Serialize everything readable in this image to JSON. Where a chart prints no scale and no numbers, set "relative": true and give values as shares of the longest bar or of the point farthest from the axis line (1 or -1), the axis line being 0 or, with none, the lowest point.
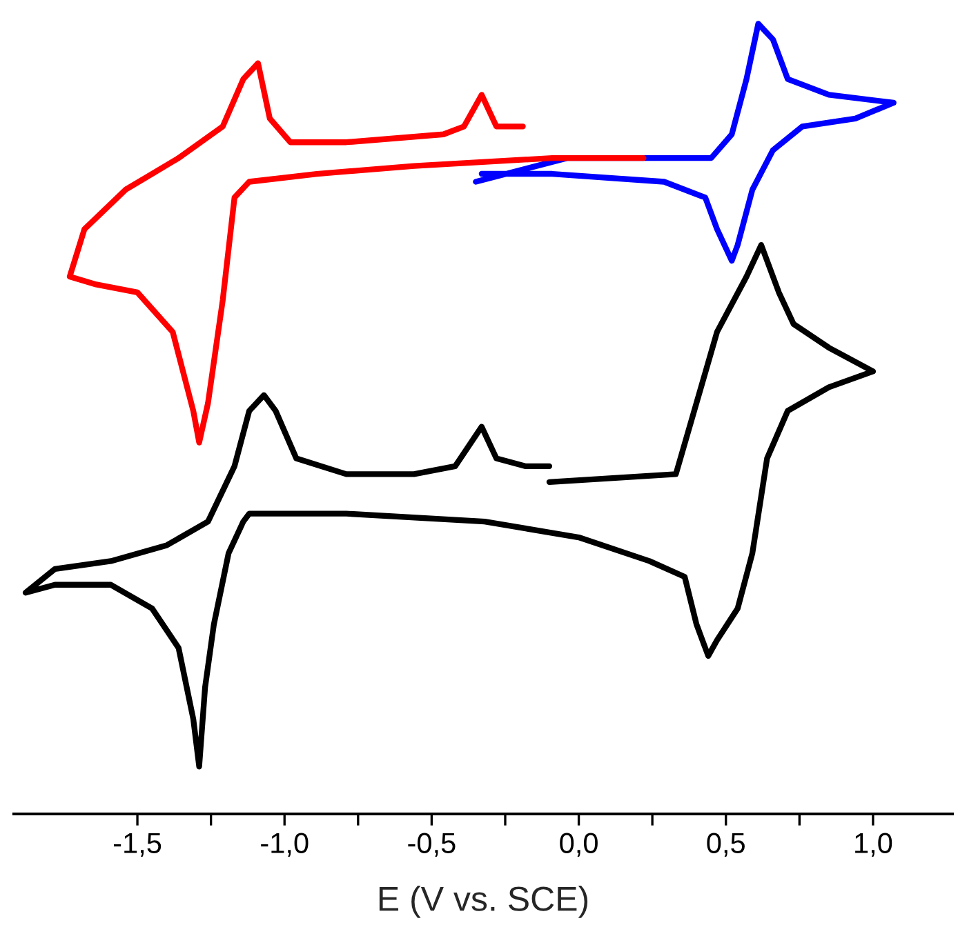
{
  "chart_data": {
    "type": "line",
    "relative": true,
    "xlabel": "E (V vs. SCE)",
    "xlim": [
      -1.92,
      1.27
    ],
    "xticks": [
      {
        "value": -1.5,
        "label": "-1,5"
      },
      {
        "value": -1.25,
        "label": null
      },
      {
        "value": -1.0,
        "label": "-1,0"
      },
      {
        "value": -0.75,
        "label": null
      },
      {
        "value": -0.5,
        "label": "-0,5"
      },
      {
        "value": -0.25,
        "label": null
      },
      {
        "value": 0.0,
        "label": "0,0"
      },
      {
        "value": 0.25,
        "label": null
      },
      {
        "value": 0.5,
        "label": "0,5"
      },
      {
        "value": 0.75,
        "label": null
      },
      {
        "value": 1.0,
        "label": "1,0"
      }
    ],
    "tick_labels": "x",
    "grid": false,
    "legend": false,
    "marker": "none",
    "line_style": "solid",
    "series": [
      {
        "color": "#000000",
        "x": [
          -0.1,
          0.33,
          0.47,
          0.57,
          0.62,
          0.68,
          0.73,
          0.85,
          1.0,
          0.85,
          0.71,
          0.64,
          0.59,
          0.54,
          0.47,
          0.44,
          0.4,
          0.36,
          0.24,
          0.0,
          -0.32,
          -0.79,
          -1.12,
          -1.14,
          -1.19,
          -1.24,
          -1.27,
          -1.29,
          -1.31,
          -1.36,
          -1.45,
          -1.59,
          -1.78,
          -1.88,
          -1.78,
          -1.59,
          -1.4,
          -1.26,
          -1.17,
          -1.12,
          -1.07,
          -1.03,
          -0.96,
          -0.79,
          -0.56,
          -0.42,
          -0.33,
          -0.28,
          -0.18,
          -0.1
        ],
        "values": [
          0.42,
          0.43,
          0.61,
          0.68,
          0.72,
          0.66,
          0.62,
          0.59,
          0.56,
          0.54,
          0.51,
          0.45,
          0.33,
          0.26,
          0.22,
          0.2,
          0.24,
          0.3,
          0.32,
          0.35,
          0.37,
          0.38,
          0.38,
          0.37,
          0.33,
          0.24,
          0.16,
          0.06,
          0.12,
          0.21,
          0.26,
          0.29,
          0.29,
          0.28,
          0.31,
          0.32,
          0.34,
          0.37,
          0.44,
          0.51,
          0.53,
          0.51,
          0.45,
          0.43,
          0.43,
          0.44,
          0.49,
          0.45,
          0.44,
          0.44
        ]
      },
      {
        "color": "#ff0000",
        "x": [
          -0.19,
          -0.28,
          -0.33,
          -0.39,
          -0.46,
          -0.79,
          -0.98,
          -1.05,
          -1.09,
          -1.14,
          -1.21,
          -1.36,
          -1.54,
          -1.68,
          -1.73,
          -1.64,
          -1.5,
          -1.38,
          -1.31,
          -1.29,
          -1.26,
          -1.21,
          -1.17,
          -1.12,
          -0.89,
          -0.56,
          -0.09,
          0.22
        ],
        "values": [
          0.87,
          0.87,
          0.91,
          0.87,
          0.86,
          0.85,
          0.85,
          0.88,
          0.95,
          0.93,
          0.87,
          0.83,
          0.79,
          0.74,
          0.68,
          0.67,
          0.66,
          0.61,
          0.51,
          0.47,
          0.52,
          0.65,
          0.78,
          0.8,
          0.81,
          0.82,
          0.83,
          0.83
        ]
      },
      {
        "color": "#0000ff",
        "x": [
          -0.35,
          -0.04,
          0.22,
          0.45,
          0.52,
          0.57,
          0.61,
          0.66,
          0.71,
          0.85,
          1.07,
          0.94,
          0.76,
          0.66,
          0.59,
          0.54,
          0.52,
          0.47,
          0.43,
          0.29,
          -0.09,
          -0.33
        ],
        "values": [
          0.8,
          0.83,
          0.83,
          0.83,
          0.86,
          0.93,
          1.0,
          0.98,
          0.93,
          0.91,
          0.9,
          0.88,
          0.87,
          0.84,
          0.79,
          0.72,
          0.7,
          0.74,
          0.78,
          0.8,
          0.81,
          0.81
        ]
      }
    ]
  }
}
